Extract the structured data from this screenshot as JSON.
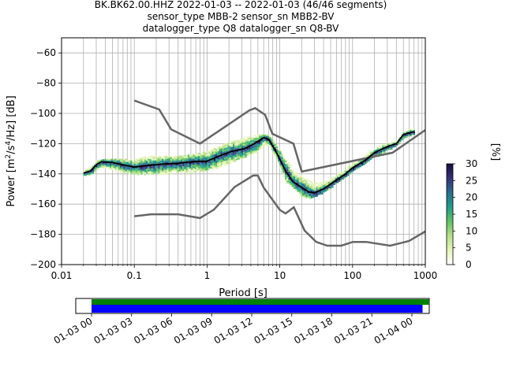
{
  "title_lines": [
    "BK.BK62.00.HHZ   2022-01-03 -- 2022-01-03  (46/46 segments)",
    "sensor_type MBB-2 sensor_sn MBB2-BV",
    "datalogger_type Q8 datalogger_sn Q8-BV"
  ],
  "chart_data": {
    "type": "heatmap",
    "xlabel": "Period [s]",
    "ylabel_main": "Power [m",
    "ylabel_sup1": "2",
    "ylabel_mid": "/s",
    "ylabel_sup2": "4",
    "ylabel_end": "/Hz] [dB]",
    "x_scale": "log",
    "xlim": [
      0.01,
      1000
    ],
    "ylim": [
      -200,
      -50
    ],
    "x_ticks": [
      {
        "value": 0.01,
        "label": "0.01"
      },
      {
        "value": 0.1,
        "label": "0.1"
      },
      {
        "value": 1,
        "label": "1"
      },
      {
        "value": 10,
        "label": "10"
      },
      {
        "value": 100,
        "label": "100"
      },
      {
        "value": 1000,
        "label": "1000"
      }
    ],
    "y_ticks": [
      {
        "value": -60,
        "label": "−60"
      },
      {
        "value": -80,
        "label": "−80"
      },
      {
        "value": -100,
        "label": "−100"
      },
      {
        "value": -120,
        "label": "−120"
      },
      {
        "value": -140,
        "label": "−140"
      },
      {
        "value": -160,
        "label": "−160"
      },
      {
        "value": -180,
        "label": "−180"
      },
      {
        "value": -200,
        "label": "−200"
      }
    ],
    "grid": true,
    "nhnm": [
      [
        0.1,
        -91.5
      ],
      [
        0.22,
        -97.4
      ],
      [
        0.32,
        -110.5
      ],
      [
        0.8,
        -120
      ],
      [
        3.8,
        -98
      ],
      [
        4.6,
        -96.5
      ],
      [
        6.3,
        -101
      ],
      [
        7.9,
        -113.5
      ],
      [
        15.4,
        -120
      ],
      [
        20,
        -138.5
      ],
      [
        354.8,
        -126
      ],
      [
        1000,
        -111
      ]
    ],
    "nlnm": [
      [
        0.1,
        -168
      ],
      [
        0.17,
        -166.7
      ],
      [
        0.4,
        -166.7
      ],
      [
        0.8,
        -169.2
      ],
      [
        1.24,
        -163.7
      ],
      [
        2.4,
        -148.6
      ],
      [
        4.3,
        -141.1
      ],
      [
        5,
        -141.1
      ],
      [
        6,
        -149
      ],
      [
        10,
        -163.8
      ],
      [
        12,
        -166.2
      ],
      [
        15.6,
        -162.1
      ],
      [
        21.9,
        -177.5
      ],
      [
        31.6,
        -185
      ],
      [
        45,
        -187.5
      ],
      [
        70,
        -187.5
      ],
      [
        101,
        -185
      ],
      [
        154,
        -185
      ],
      [
        328,
        -187.5
      ],
      [
        600,
        -184.4
      ],
      [
        1000,
        -178
      ]
    ],
    "mode_curve": [
      [
        0.02,
        -139.5
      ],
      [
        0.025,
        -138
      ],
      [
        0.03,
        -134
      ],
      [
        0.035,
        -132
      ],
      [
        0.05,
        -132.5
      ],
      [
        0.07,
        -134
      ],
      [
        0.1,
        -135.5
      ],
      [
        0.15,
        -134.5
      ],
      [
        0.25,
        -133.5
      ],
      [
        0.4,
        -133
      ],
      [
        0.6,
        -132
      ],
      [
        1,
        -131.5
      ],
      [
        1.5,
        -128
      ],
      [
        2.2,
        -125
      ],
      [
        3.2,
        -123.5
      ],
      [
        4.5,
        -120
      ],
      [
        6,
        -116
      ],
      [
        7,
        -117
      ],
      [
        9,
        -126
      ],
      [
        12,
        -138
      ],
      [
        15,
        -145
      ],
      [
        20,
        -149
      ],
      [
        25,
        -152
      ],
      [
        30,
        -152.5
      ],
      [
        40,
        -150
      ],
      [
        60,
        -144
      ],
      [
        80,
        -140
      ],
      [
        100,
        -136
      ],
      [
        150,
        -131
      ],
      [
        200,
        -126
      ],
      [
        300,
        -122
      ],
      [
        400,
        -120
      ],
      [
        500,
        -114
      ],
      [
        700,
        -112
      ]
    ],
    "psd_band": [
      [
        0.02,
        -141,
        -138
      ],
      [
        0.025,
        -140,
        -135
      ],
      [
        0.03,
        -137,
        -131
      ],
      [
        0.04,
        -136,
        -130
      ],
      [
        0.05,
        -137,
        -130
      ],
      [
        0.07,
        -139,
        -130
      ],
      [
        0.1,
        -140,
        -130
      ],
      [
        0.15,
        -140,
        -128
      ],
      [
        0.25,
        -140,
        -128
      ],
      [
        0.4,
        -139,
        -128
      ],
      [
        0.6,
        -139,
        -127
      ],
      [
        1,
        -138,
        -125
      ],
      [
        1.5,
        -135,
        -121
      ],
      [
        2.2,
        -132,
        -118
      ],
      [
        3.2,
        -129,
        -116
      ],
      [
        4.5,
        -126,
        -114
      ],
      [
        6,
        -121,
        -114
      ],
      [
        7,
        -121,
        -114
      ],
      [
        9,
        -131,
        -121
      ],
      [
        12,
        -145,
        -130
      ],
      [
        15,
        -149,
        -136
      ],
      [
        20,
        -155,
        -141
      ],
      [
        25,
        -156,
        -144
      ],
      [
        30,
        -155,
        -146
      ],
      [
        40,
        -152,
        -145
      ],
      [
        60,
        -146,
        -140
      ],
      [
        80,
        -142,
        -136
      ],
      [
        100,
        -138,
        -132
      ],
      [
        150,
        -133,
        -127
      ],
      [
        200,
        -128,
        -122
      ],
      [
        300,
        -124,
        -119
      ],
      [
        400,
        -121,
        -118
      ],
      [
        500,
        -116,
        -110
      ],
      [
        700,
        -114,
        -110
      ]
    ],
    "colorbar": {
      "label": "[%]",
      "min": 0,
      "max": 30,
      "ticks": [
        0,
        5,
        10,
        15,
        20,
        25,
        30
      ],
      "colors": [
        "#ffffff",
        "#e5f5b8",
        "#b5e08a",
        "#5ec262",
        "#1f9e89",
        "#2a6e8e",
        "#35327a",
        "#1b0c41"
      ]
    },
    "timeline": {
      "tick_labels": [
        "01-03 00",
        "01-03 03",
        "01-03 06",
        "01-03 09",
        "01-03 12",
        "01-03 15",
        "01-03 18",
        "01-03 21",
        "01-04 00"
      ],
      "green_end_hours": 25.3,
      "blue_end_hours": 24.8,
      "green_color": "#008000",
      "blue_color": "#0000ff"
    },
    "noise_model_color": "#666666"
  }
}
